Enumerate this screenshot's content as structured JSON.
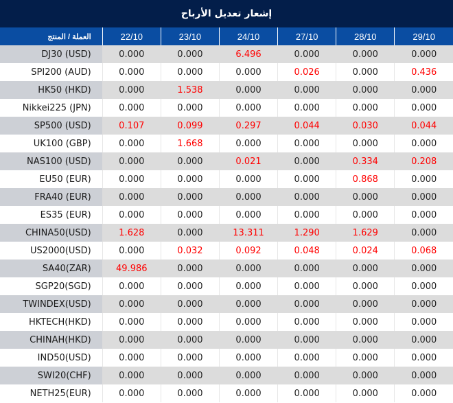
{
  "title": "إشعار تعديل الأرباح",
  "header": {
    "product_label": "العملة / المنتج",
    "dates": [
      "22/10",
      "23/10",
      "24/10",
      "27/10",
      "28/10",
      "29/10"
    ]
  },
  "colors": {
    "title_bg": "#031e4a",
    "header_bg": "#0a4da2",
    "highlight_value": "#ff0000",
    "row_alt_bg": "#dcdcdc"
  },
  "rows": [
    {
      "product": "DJ30 (USD)",
      "values": [
        "0.000",
        "0.000",
        "6.496",
        "0.000",
        "0.000",
        "0.000"
      ]
    },
    {
      "product": "SPI200 (AUD)",
      "values": [
        "0.000",
        "0.000",
        "0.000",
        "0.026",
        "0.000",
        "0.436"
      ]
    },
    {
      "product": "HK50 (HKD)",
      "values": [
        "0.000",
        "1.538",
        "0.000",
        "0.000",
        "0.000",
        "0.000"
      ]
    },
    {
      "product": "Nikkei225 (JPN)",
      "values": [
        "0.000",
        "0.000",
        "0.000",
        "0.000",
        "0.000",
        "0.000"
      ]
    },
    {
      "product": "SP500 (USD)",
      "values": [
        "0.107",
        "0.099",
        "0.297",
        "0.044",
        "0.030",
        "0.044"
      ]
    },
    {
      "product": "UK100 (GBP)",
      "values": [
        "0.000",
        "1.668",
        "0.000",
        "0.000",
        "0.000",
        "0.000"
      ]
    },
    {
      "product": "NAS100 (USD)",
      "values": [
        "0.000",
        "0.000",
        "0.021",
        "0.000",
        "0.334",
        "0.208"
      ]
    },
    {
      "product": "EU50 (EUR)",
      "values": [
        "0.000",
        "0.000",
        "0.000",
        "0.000",
        "0.868",
        "0.000"
      ]
    },
    {
      "product": "FRA40 (EUR)",
      "values": [
        "0.000",
        "0.000",
        "0.000",
        "0.000",
        "0.000",
        "0.000"
      ]
    },
    {
      "product": "ES35 (EUR)",
      "values": [
        "0.000",
        "0.000",
        "0.000",
        "0.000",
        "0.000",
        "0.000"
      ]
    },
    {
      "product": "CHINA50(USD)",
      "values": [
        "1.628",
        "0.000",
        "13.311",
        "1.290",
        "1.629",
        "0.000"
      ]
    },
    {
      "product": "US2000(USD)",
      "values": [
        "0.000",
        "0.032",
        "0.092",
        "0.048",
        "0.024",
        "0.068"
      ]
    },
    {
      "product": "SA40(ZAR)",
      "values": [
        "49.986",
        "0.000",
        "0.000",
        "0.000",
        "0.000",
        "0.000"
      ]
    },
    {
      "product": "SGP20(SGD)",
      "values": [
        "0.000",
        "0.000",
        "0.000",
        "0.000",
        "0.000",
        "0.000"
      ]
    },
    {
      "product": "TWINDEX(USD)",
      "values": [
        "0.000",
        "0.000",
        "0.000",
        "0.000",
        "0.000",
        "0.000"
      ]
    },
    {
      "product": "HKTECH(HKD)",
      "values": [
        "0.000",
        "0.000",
        "0.000",
        "0.000",
        "0.000",
        "0.000"
      ]
    },
    {
      "product": "CHINAH(HKD)",
      "values": [
        "0.000",
        "0.000",
        "0.000",
        "0.000",
        "0.000",
        "0.000"
      ]
    },
    {
      "product": "IND50(USD)",
      "values": [
        "0.000",
        "0.000",
        "0.000",
        "0.000",
        "0.000",
        "0.000"
      ]
    },
    {
      "product": "SWI20(CHF)",
      "values": [
        "0.000",
        "0.000",
        "0.000",
        "0.000",
        "0.000",
        "0.000"
      ]
    },
    {
      "product": "NETH25(EUR)",
      "values": [
        "0.000",
        "0.000",
        "0.000",
        "0.000",
        "0.000",
        "0.000"
      ]
    }
  ]
}
